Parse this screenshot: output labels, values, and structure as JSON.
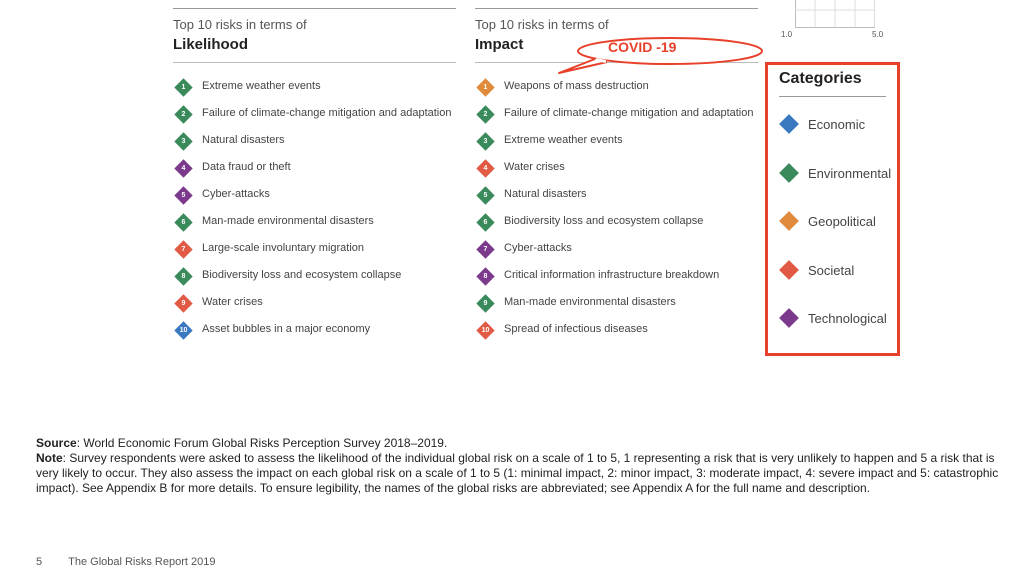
{
  "likelihood": {
    "pre": "Top 10 risks in terms of",
    "title": "Likelihood",
    "items": [
      {
        "num": "1",
        "label": "Extreme weather events",
        "color": "#3a8a5c"
      },
      {
        "num": "2",
        "label": "Failure of climate-change mitigation and adaptation",
        "color": "#3a8a5c"
      },
      {
        "num": "3",
        "label": "Natural disasters",
        "color": "#3a8a5c"
      },
      {
        "num": "4",
        "label": "Data fraud or theft",
        "color": "#7b3a8c"
      },
      {
        "num": "5",
        "label": "Cyber-attacks",
        "color": "#7b3a8c"
      },
      {
        "num": "6",
        "label": "Man-made environmental disasters",
        "color": "#3a8a5c"
      },
      {
        "num": "7",
        "label": "Large-scale involuntary migration",
        "color": "#e05a44"
      },
      {
        "num": "8",
        "label": "Biodiversity loss and ecosystem collapse",
        "color": "#3a8a5c"
      },
      {
        "num": "9",
        "label": "Water crises",
        "color": "#e05a44"
      },
      {
        "num": "10",
        "label": "Asset bubbles in a major economy",
        "color": "#3a78c0"
      }
    ]
  },
  "impact": {
    "pre": "Top 10 risks in terms of",
    "title": "Impact",
    "items": [
      {
        "num": "1",
        "label": "Weapons of mass destruction",
        "color": "#e08a3c"
      },
      {
        "num": "2",
        "label": "Failure of climate-change mitigation and adaptation",
        "color": "#3a8a5c"
      },
      {
        "num": "3",
        "label": "Extreme weather events",
        "color": "#3a8a5c"
      },
      {
        "num": "4",
        "label": "Water crises",
        "color": "#e05a44"
      },
      {
        "num": "5",
        "label": "Natural disasters",
        "color": "#3a8a5c"
      },
      {
        "num": "6",
        "label": "Biodiversity loss and ecosystem collapse",
        "color": "#3a8a5c"
      },
      {
        "num": "7",
        "label": "Cyber-attacks",
        "color": "#7b3a8c"
      },
      {
        "num": "8",
        "label": "Critical information infrastructure breakdown",
        "color": "#7b3a8c"
      },
      {
        "num": "9",
        "label": "Man-made environmental disasters",
        "color": "#3a8a5c"
      },
      {
        "num": "10",
        "label": "Spread of infectious diseases",
        "color": "#e05a44"
      }
    ]
  },
  "callout": {
    "text": "COVID -19",
    "color": "#e8402a"
  },
  "chart_ticks": {
    "left": "1.0",
    "right": "5.0"
  },
  "categories": {
    "title": "Categories",
    "items": [
      {
        "label": "Economic",
        "color": "#3a78c0"
      },
      {
        "label": "Environmental",
        "color": "#3a8a5c"
      },
      {
        "label": "Geopolitical",
        "color": "#e08a3c"
      },
      {
        "label": "Societal",
        "color": "#e05a44"
      },
      {
        "label": "Technological",
        "color": "#7b3a8c"
      }
    ]
  },
  "notes": {
    "source_label": "Source",
    "source_text": ": World Economic Forum Global Risks Perception Survey 2018–2019.",
    "note_label": "Note",
    "note_text": ": Survey respondents were asked to assess the likelihood of the individual global risk on a scale of 1 to 5, 1 representing a risk that is very unlikely to happen and 5 a risk that is very likely to occur. They also assess the impact on each global risk on a scale of 1 to 5 (1: minimal impact, 2: minor impact, 3: moderate impact, 4: severe impact and 5: catastrophic impact). See Appendix B for more details. To ensure legibility, the names of the global risks are abbreviated; see Appendix A for the full name and description."
  },
  "footer": {
    "page": "5",
    "title": "The Global Risks Report 2019"
  }
}
